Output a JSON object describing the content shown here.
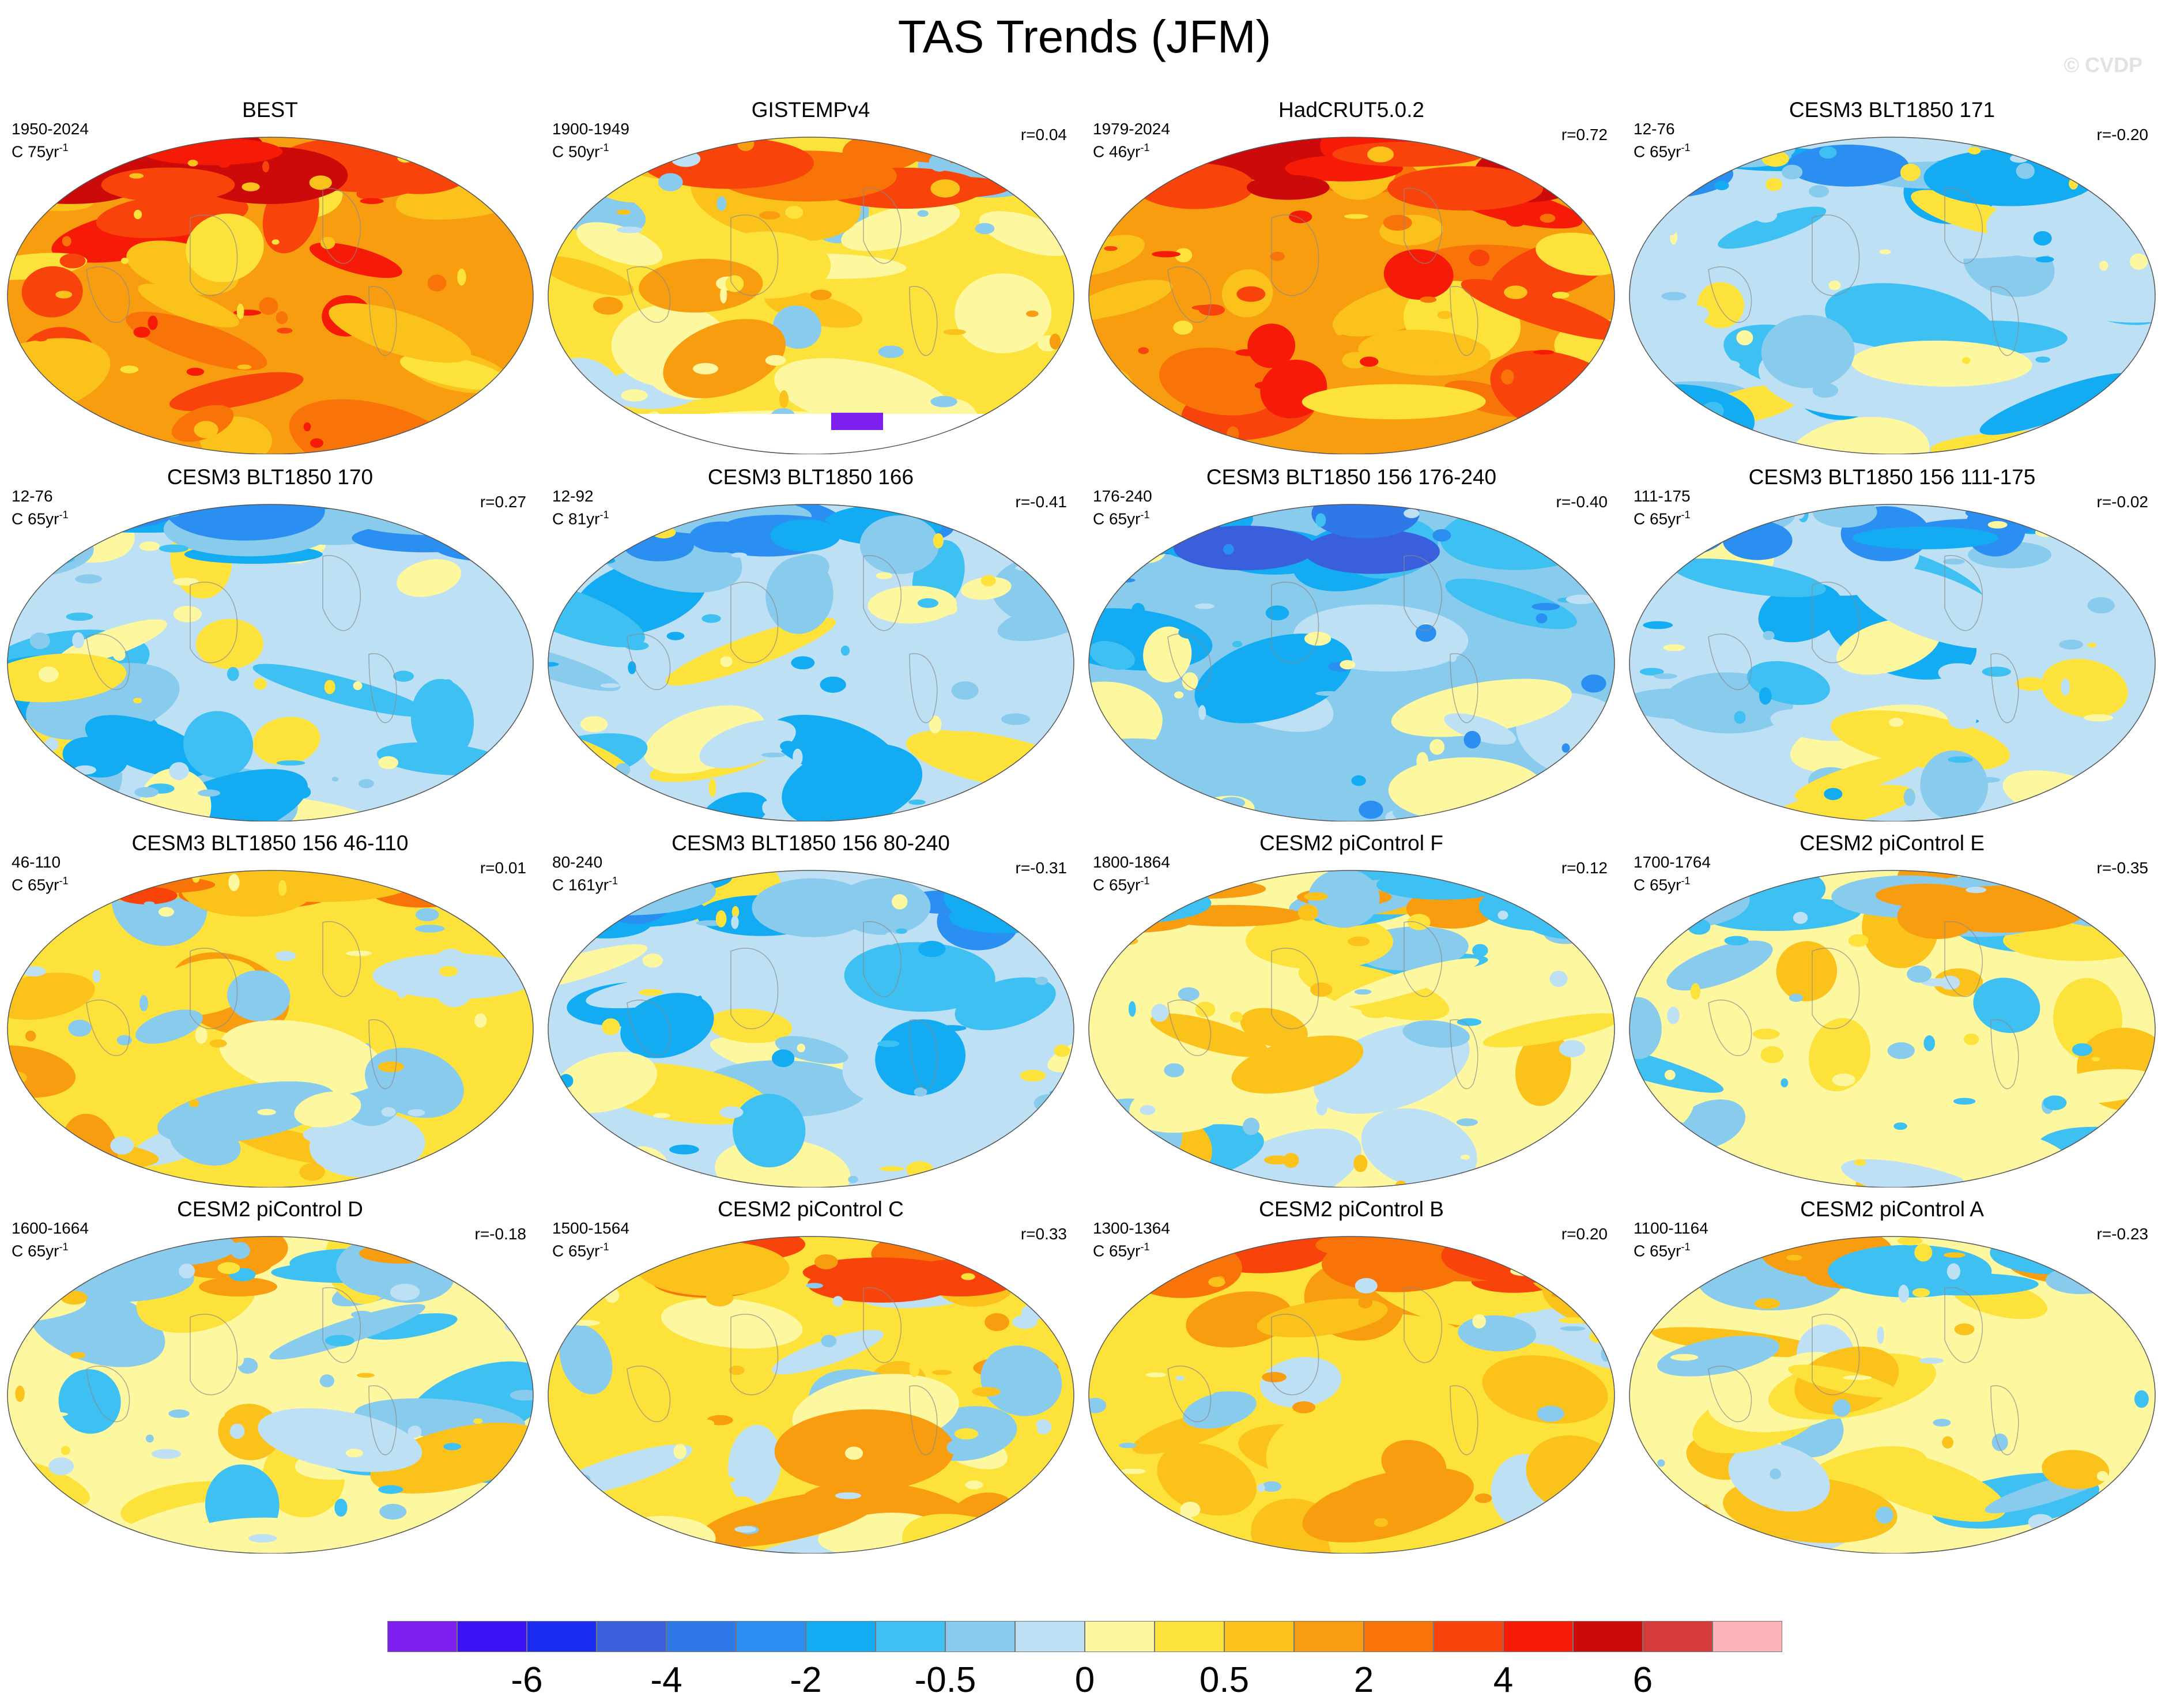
{
  "figure": {
    "title": "TAS Trends (JFM)",
    "watermark": "© CVDP"
  },
  "panels": [
    {
      "title": "BEST",
      "period": "1950-2024",
      "unit_base": "C 75yr",
      "unit_exp": "-1",
      "r": "",
      "pattern": "warm",
      "missing_north": false,
      "missing_south": false
    },
    {
      "title": "GISTEMPv4",
      "period": "1900-1949",
      "unit_base": "C 50yr",
      "unit_exp": "-1",
      "r": "r=0.04",
      "pattern": "mixed_warm",
      "missing_north": false,
      "missing_south": true
    },
    {
      "title": "HadCRUT5.0.2",
      "period": "1979-2024",
      "unit_base": "C 46yr",
      "unit_exp": "-1",
      "r": "r=0.72",
      "pattern": "warm",
      "missing_north": false,
      "missing_south": false
    },
    {
      "title": "CESM3 BLT1850 171",
      "period": "12-76",
      "unit_base": "C 65yr",
      "unit_exp": "-1",
      "r": "r=-0.20",
      "pattern": "cool",
      "missing_north": false,
      "missing_south": false
    },
    {
      "title": "CESM3 BLT1850 170",
      "period": "12-76",
      "unit_base": "C 65yr",
      "unit_exp": "-1",
      "r": "r=0.27",
      "pattern": "cool",
      "missing_north": false,
      "missing_south": false
    },
    {
      "title": "CESM3 BLT1850 166",
      "period": "12-92",
      "unit_base": "C 81yr",
      "unit_exp": "-1",
      "r": "r=-0.41",
      "pattern": "cool",
      "missing_north": false,
      "missing_south": false
    },
    {
      "title": "CESM3 BLT1850 156 176-240",
      "period": "176-240",
      "unit_base": "C 65yr",
      "unit_exp": "-1",
      "r": "r=-0.40",
      "pattern": "cold",
      "missing_north": false,
      "missing_south": false
    },
    {
      "title": "CESM3 BLT1850 156 111-175",
      "period": "111-175",
      "unit_base": "C 65yr",
      "unit_exp": "-1",
      "r": "r=-0.02",
      "pattern": "cool",
      "missing_north": false,
      "missing_south": false
    },
    {
      "title": "CESM3 BLT1850 156 46-110",
      "period": "46-110",
      "unit_base": "C 65yr",
      "unit_exp": "-1",
      "r": "r=0.01",
      "pattern": "mixed_warm",
      "missing_north": false,
      "missing_south": false
    },
    {
      "title": "CESM3 BLT1850 156 80-240",
      "period": "80-240",
      "unit_base": "C 161yr",
      "unit_exp": "-1",
      "r": "r=-0.31",
      "pattern": "cool",
      "missing_north": false,
      "missing_south": false
    },
    {
      "title": "CESM2 piControl F",
      "period": "1800-1864",
      "unit_base": "C 65yr",
      "unit_exp": "-1",
      "r": "r=0.12",
      "pattern": "mixed",
      "missing_north": false,
      "missing_south": false
    },
    {
      "title": "CESM2 piControl E",
      "period": "1700-1764",
      "unit_base": "C 65yr",
      "unit_exp": "-1",
      "r": "r=-0.35",
      "pattern": "mixed",
      "missing_north": false,
      "missing_south": false
    },
    {
      "title": "CESM2 piControl D",
      "period": "1600-1664",
      "unit_base": "C 65yr",
      "unit_exp": "-1",
      "r": "r=-0.18",
      "pattern": "mixed",
      "missing_north": false,
      "missing_south": false
    },
    {
      "title": "CESM2 piControl C",
      "period": "1500-1564",
      "unit_base": "C 65yr",
      "unit_exp": "-1",
      "r": "r=0.33",
      "pattern": "mixed_warm",
      "missing_north": false,
      "missing_south": false
    },
    {
      "title": "CESM2 piControl B",
      "period": "1300-1364",
      "unit_base": "C 65yr",
      "unit_exp": "-1",
      "r": "r=0.20",
      "pattern": "mixed_warm",
      "missing_north": false,
      "missing_south": false
    },
    {
      "title": "CESM2 piControl A",
      "period": "1100-1164",
      "unit_base": "C 65yr",
      "unit_exp": "-1",
      "r": "r=-0.23",
      "pattern": "mixed",
      "missing_north": false,
      "missing_south": false
    }
  ],
  "colorbar": {
    "colors": [
      "#7f1ff0",
      "#3c12f5",
      "#1a2cf4",
      "#3a5fdc",
      "#2f78e8",
      "#2a8ff0",
      "#13acf2",
      "#3ec0f2",
      "#88cbed",
      "#bde0f5",
      "#fdf7a0",
      "#fde23c",
      "#fbc21c",
      "#f89c10",
      "#f97408",
      "#f8440b",
      "#f61b06",
      "#cc0a0a",
      "#d63a3a",
      "#fcb3b8"
    ],
    "labels": [
      "-6",
      "-4",
      "-2",
      "-0.5",
      "0",
      "0.5",
      "2",
      "4",
      "6"
    ],
    "label_boundaries": [
      2,
      4,
      6,
      8,
      10,
      12,
      14,
      16,
      18
    ]
  }
}
